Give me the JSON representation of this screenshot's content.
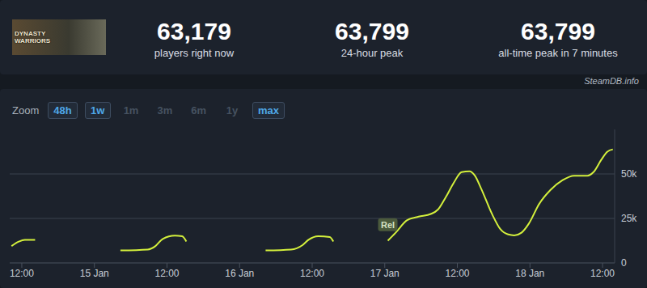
{
  "header": {
    "image_label": "DYNASTY WARRIORS",
    "stats": [
      {
        "value": "63,179",
        "label": "players right now"
      },
      {
        "value": "63,799",
        "label": "24-hour peak"
      },
      {
        "value": "63,799",
        "label": "all-time peak in 7 minutes"
      }
    ],
    "source": "SteamDB.info"
  },
  "zoom": {
    "label": "Zoom",
    "options": [
      {
        "label": "48h",
        "active": true
      },
      {
        "label": "1w",
        "active": true
      },
      {
        "label": "1m",
        "active": false
      },
      {
        "label": "3m",
        "active": false
      },
      {
        "label": "6m",
        "active": false
      },
      {
        "label": "1y",
        "active": false
      },
      {
        "label": "max",
        "active": true
      }
    ]
  },
  "chart_data": {
    "type": "line",
    "color": "#d4f03c",
    "grid": true,
    "x": [
      10.3,
      11.5,
      12.5,
      14.2,
      20,
      28.3,
      32.8,
      34.1,
      35.3,
      37.3,
      38.5,
      39.2,
      45,
      52.3,
      56.5,
      58.4,
      59.4,
      61,
      62.9,
      63.5,
      68,
      72.5,
      73.8,
      75.7,
      77.6,
      79.6,
      80.8,
      82.1,
      83.4,
      84.7,
      86,
      86.9,
      87.9,
      89.8,
      91.1,
      92.4,
      93.4,
      94.6,
      95.8,
      97.5,
      99.4,
      101.4,
      103.3,
      105.5,
      106.5,
      107.8,
      108.8,
      109.7
    ],
    "values": [
      9500,
      12000,
      13000,
      13000,
      null,
      7000,
      7500,
      9500,
      13500,
      15300,
      15000,
      12000,
      null,
      7000,
      7500,
      10000,
      13000,
      15000,
      14500,
      12000,
      null,
      12500,
      17000,
      24000,
      26000,
      27500,
      30000,
      37000,
      45000,
      51000,
      51500,
      49000,
      42000,
      27000,
      19000,
      16000,
      15500,
      17000,
      22000,
      33000,
      41000,
      46500,
      49000,
      49000,
      51000,
      58000,
      62500,
      63800
    ],
    "xlim": [
      10,
      110
    ],
    "xticks": [
      {
        "value": 12,
        "label": "12:00"
      },
      {
        "value": 24,
        "label": "15 Jan"
      },
      {
        "value": 36,
        "label": "12:00"
      },
      {
        "value": 48,
        "label": "16 Jan"
      },
      {
        "value": 60,
        "label": "12:00"
      },
      {
        "value": 72,
        "label": "17 Jan"
      },
      {
        "value": 84,
        "label": "12:00"
      },
      {
        "value": 96,
        "label": "18 Jan"
      },
      {
        "value": 108,
        "label": "12:00"
      }
    ],
    "ylim": [
      0,
      75000
    ],
    "yticks": [
      0,
      {
        "value": 25000,
        "label": "25k"
      },
      {
        "value": 50000,
        "label": "50k"
      }
    ],
    "annotations": [
      {
        "x": 72.5,
        "y": 21500,
        "label": "Rel"
      }
    ]
  }
}
